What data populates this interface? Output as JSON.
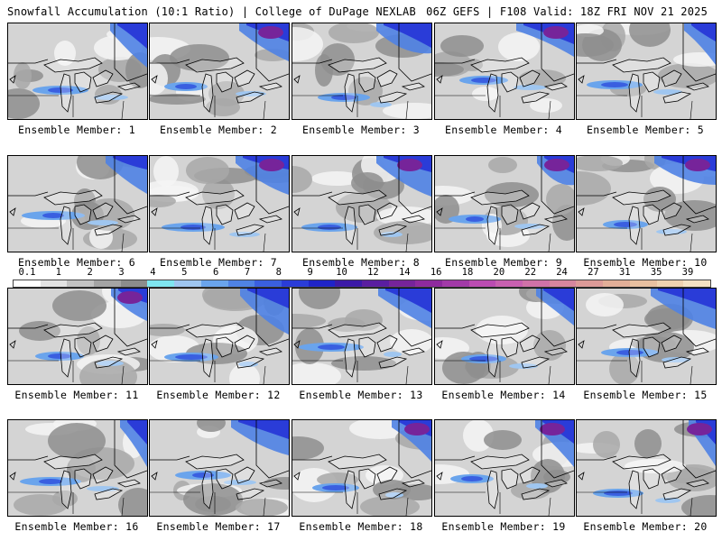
{
  "header": {
    "left": "Snowfall Accumulation (10:1 Ratio) | College of DuPage NEXLAB",
    "right": "06Z GEFS | F108 Valid: 18Z FRI NOV 21 2025"
  },
  "members": [
    "Ensemble Member: 1",
    "Ensemble Member: 2",
    "Ensemble Member: 3",
    "Ensemble Member: 4",
    "Ensemble Member: 5",
    "Ensemble Member: 6",
    "Ensemble Member: 7",
    "Ensemble Member: 8",
    "Ensemble Member: 9",
    "Ensemble Member: 10",
    "Ensemble Member: 11",
    "Ensemble Member: 12",
    "Ensemble Member: 13",
    "Ensemble Member: 14",
    "Ensemble Member: 15",
    "Ensemble Member: 16",
    "Ensemble Member: 17",
    "Ensemble Member: 18",
    "Ensemble Member: 19",
    "Ensemble Member: 20"
  ],
  "legend": {
    "labels": [
      "0.1",
      "1",
      "2",
      "3",
      "4",
      "5",
      "6",
      "7",
      "8",
      "9",
      "10",
      "12",
      "14",
      "16",
      "18",
      "20",
      "22",
      "24",
      "27",
      "31",
      "35",
      "39"
    ],
    "colors": [
      "#ffffff",
      "#e2e2e2",
      "#c2c2c2",
      "#a4a4a4",
      "#8c8c8c",
      "#7fe6f0",
      "#9fc6f0",
      "#6aa4ec",
      "#4f82e4",
      "#3a5fe0",
      "#2a3cd8",
      "#1f24c8",
      "#3c1aa8",
      "#5a1ea0",
      "#76249a",
      "#8e2a9e",
      "#a23aa8",
      "#bb4cb2",
      "#c860b0",
      "#d072a8",
      "#d6869e",
      "#dc9a98",
      "#e2ae98",
      "#e8c0a0",
      "#eed2b0",
      "#f4e2c4"
    ]
  }
}
